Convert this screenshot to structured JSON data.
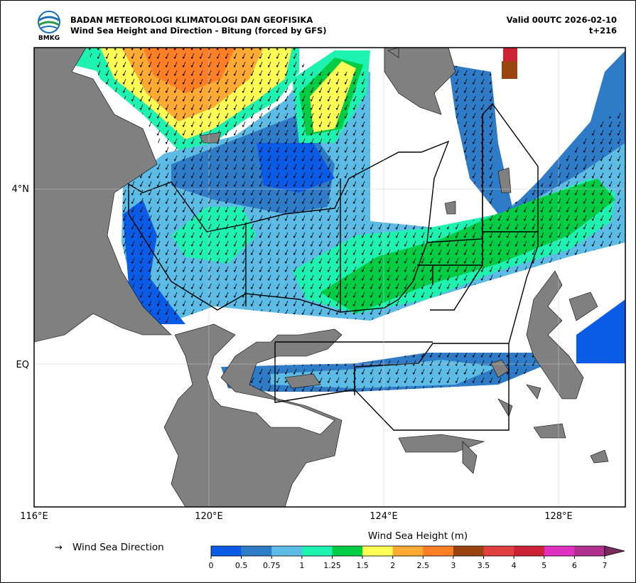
{
  "header": {
    "agency": "BADAN METEOROLOGI KLIMATOLOGI DAN GEOFISIKA",
    "title": "Wind Sea Height and Direction - Bitung (forced by GFS)",
    "valid": "Valid 00UTC 2026-02-10",
    "lead": "t+216",
    "logo_text": "BMKG"
  },
  "map": {
    "x_labels": [
      "116°E",
      "120°E",
      "124°E",
      "128°E"
    ],
    "y_labels": [
      "4°N",
      "EQ"
    ]
  },
  "legend": {
    "arrow": "→",
    "label": "Wind Sea Direction"
  },
  "colorbar": {
    "title": "Wind Sea Height (m)",
    "ticks": [
      0,
      0.5,
      0.75,
      1,
      1.25,
      1.5,
      2,
      2.5,
      3,
      3.5,
      4,
      5,
      6,
      7
    ],
    "colors": [
      "#0a5ce6",
      "#2e7bc8",
      "#5cbce6",
      "#1ef2b0",
      "#00cc44",
      "#ffff55",
      "#ffaa33",
      "#ff7f27",
      "#994411",
      "#e04040",
      "#cc2233",
      "#e030c0",
      "#b03090"
    ],
    "extend_color": "#7a2a5a"
  }
}
